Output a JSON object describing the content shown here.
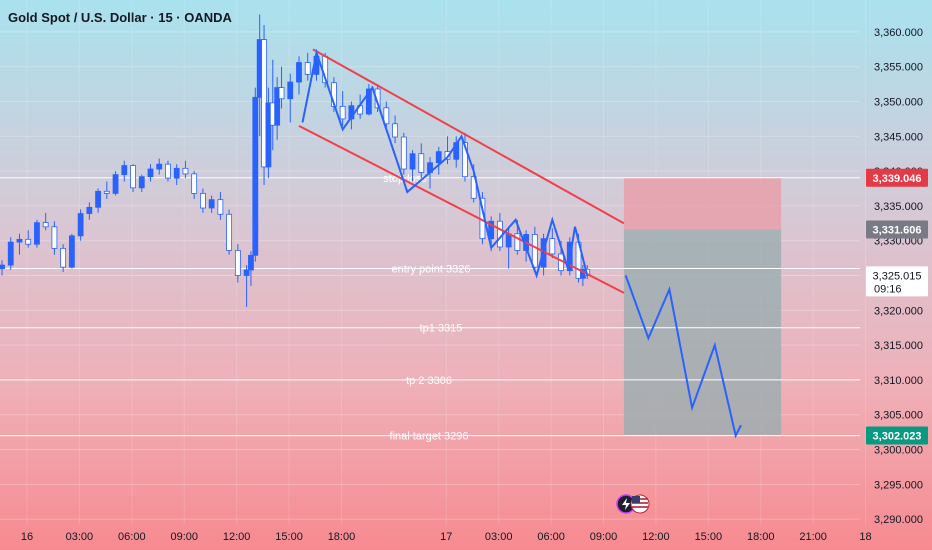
{
  "header": {
    "title": "Gold Spot / U.S. Dollar · 15 · OANDA"
  },
  "colors": {
    "channel": "#f0404a",
    "pattern": "#2962ff",
    "candle": "#2962ff",
    "level_line": "#ffffff",
    "stop_zone": "#e8a0aa",
    "target_zone": "#9aaeb0",
    "stop_badge": "#e63946",
    "entry_badge": "#787b86",
    "target_badge": "#089981",
    "current_badge": "#ffffff"
  },
  "chart_data": {
    "type": "candlestick",
    "symbol": "Gold Spot / U.S. Dollar",
    "interval": "15",
    "source": "OANDA",
    "ylim": [
      3287,
      3362
    ],
    "y_ticks": [
      "3,290.000",
      "3,295.000",
      "3,300.000",
      "3,305.000",
      "3,310.000",
      "3,315.000",
      "3,320.000",
      "3,325.000",
      "3,330.000",
      "3,335.000",
      "3,340.000",
      "3,345.000",
      "3,350.000",
      "3,355.000",
      "3,360.000"
    ],
    "y_tick_values": [
      3290,
      3295,
      3300,
      3305,
      3310,
      3315,
      3320,
      3325,
      3330,
      3335,
      3340,
      3345,
      3350,
      3355,
      3360
    ],
    "x_ticks": [
      "16",
      "03:00",
      "06:00",
      "09:00",
      "12:00",
      "15:00",
      "18:00",
      "17",
      "03:00",
      "06:00",
      "09:00",
      "12:00",
      "15:00",
      "18:00",
      "21:00",
      "18"
    ],
    "x_tick_hours": [
      0,
      3,
      6,
      9,
      12,
      15,
      18,
      24,
      27,
      30,
      33,
      36,
      39,
      42,
      45,
      48
    ],
    "levels": [
      {
        "label": "stop loss",
        "value": 3339.046
      },
      {
        "label": "entry point 3326",
        "value": 3326
      },
      {
        "label": "tp1    3315",
        "value": 3317.5
      },
      {
        "label": "tp 2     3306",
        "value": 3310
      },
      {
        "label": "final target 3296",
        "value": 3302
      }
    ],
    "price_badges": [
      {
        "text": "3,339.046",
        "value": 3339.046,
        "kind": "stop"
      },
      {
        "text": "3,331.606",
        "value": 3331.606,
        "kind": "entry"
      },
      {
        "text": "3,325.015",
        "value": 3325.015,
        "kind": "current",
        "sub": "09:16"
      },
      {
        "text": "3,302.023",
        "value": 3302.023,
        "kind": "target"
      }
    ],
    "channel": {
      "upper": [
        [
          17.8,
          3357.5
        ],
        [
          35.6,
          3332.5
        ]
      ],
      "lower": [
        [
          17.0,
          3346.5
        ],
        [
          35.6,
          3322.5
        ]
      ]
    },
    "pattern_path": [
      [
        17.2,
        3347
      ],
      [
        18.0,
        3357
      ],
      [
        19.5,
        3346
      ],
      [
        21.2,
        3352
      ],
      [
        23.2,
        3337
      ],
      [
        25.5,
        3342
      ],
      [
        26.3,
        3345
      ],
      [
        27.0,
        3340
      ],
      [
        28.0,
        3329
      ],
      [
        29.4,
        3333
      ],
      [
        30.6,
        3325
      ],
      [
        31.5,
        3333
      ],
      [
        32.4,
        3326
      ],
      [
        32.8,
        3332
      ],
      [
        33.5,
        3325
      ]
    ],
    "projection": [
      [
        35.7,
        3325
      ],
      [
        37.0,
        3316
      ],
      [
        38.2,
        3323
      ],
      [
        39.5,
        3306
      ],
      [
        40.8,
        3315
      ],
      [
        42.0,
        3302
      ],
      [
        42.3,
        3303.5
      ]
    ],
    "position": {
      "start_hour": 35.6,
      "end_hour": 44.6,
      "stop": 3339.046,
      "entry": 3331.606,
      "target": 3302.023
    },
    "candles": [
      [
        0.0,
        3326.0,
        3327.2,
        3325.0,
        3326.5
      ],
      [
        0.5,
        3326.5,
        3330.5,
        3325.8,
        3329.8
      ],
      [
        1.0,
        3329.8,
        3331.0,
        3328.0,
        3330.2
      ],
      [
        1.5,
        3330.2,
        3331.5,
        3329.0,
        3329.5
      ],
      [
        2.0,
        3329.5,
        3333.0,
        3329.0,
        3332.6
      ],
      [
        2.5,
        3332.6,
        3334.0,
        3331.5,
        3332.0
      ],
      [
        3.0,
        3332.0,
        3332.8,
        3328.0,
        3328.9
      ],
      [
        3.5,
        3328.9,
        3329.5,
        3325.5,
        3326.2
      ],
      [
        4.0,
        3326.2,
        3331.0,
        3326.0,
        3330.7
      ],
      [
        4.5,
        3330.7,
        3334.5,
        3330.0,
        3333.9
      ],
      [
        5.0,
        3333.9,
        3335.5,
        3333.0,
        3334.8
      ],
      [
        5.5,
        3334.8,
        3337.5,
        3334.0,
        3337.1
      ],
      [
        6.0,
        3337.1,
        3338.5,
        3336.0,
        3336.8
      ],
      [
        6.5,
        3336.8,
        3340.0,
        3336.5,
        3339.5
      ],
      [
        7.0,
        3339.5,
        3341.5,
        3338.5,
        3340.8
      ],
      [
        7.5,
        3340.8,
        3341.0,
        3337.0,
        3337.6
      ],
      [
        8.0,
        3337.6,
        3339.5,
        3337.0,
        3339.2
      ],
      [
        8.5,
        3339.2,
        3341.0,
        3338.5,
        3340.3
      ],
      [
        9.0,
        3340.3,
        3341.8,
        3339.5,
        3341.0
      ],
      [
        9.5,
        3341.0,
        3341.5,
        3338.5,
        3339.0
      ],
      [
        10.0,
        3339.0,
        3341.0,
        3338.0,
        3340.4
      ],
      [
        10.5,
        3340.4,
        3341.5,
        3339.0,
        3339.6
      ],
      [
        11.0,
        3339.6,
        3340.0,
        3336.0,
        3336.8
      ],
      [
        11.5,
        3336.8,
        3337.5,
        3334.0,
        3334.7
      ],
      [
        12.0,
        3334.7,
        3336.5,
        3334.0,
        3335.9
      ],
      [
        12.5,
        3335.9,
        3337.0,
        3333.0,
        3333.8
      ],
      [
        13.0,
        3333.8,
        3334.5,
        3328.0,
        3328.6
      ],
      [
        13.5,
        3328.6,
        3329.5,
        3324.0,
        3325.0
      ],
      [
        14.0,
        3325.0,
        3326.5,
        3320.5,
        3325.8
      ],
      [
        14.25,
        3325.8,
        3328.5,
        3323.5,
        3327.9
      ],
      [
        14.5,
        3327.9,
        3352.0,
        3327.0,
        3350.6
      ],
      [
        14.75,
        3350.6,
        3362.5,
        3345.0,
        3358.9
      ],
      [
        15.0,
        3358.9,
        3361.0,
        3338.0,
        3340.6
      ],
      [
        15.25,
        3340.6,
        3352.0,
        3339.0,
        3349.8
      ],
      [
        15.5,
        3349.8,
        3356.0,
        3343.0,
        3346.6
      ],
      [
        15.75,
        3346.6,
        3353.5,
        3344.5,
        3352.0
      ],
      [
        16.0,
        3352.0,
        3355.0,
        3349.0,
        3350.4
      ],
      [
        16.5,
        3350.4,
        3354.0,
        3347.0,
        3352.8
      ],
      [
        17.0,
        3352.8,
        3356.5,
        3351.0,
        3355.6
      ],
      [
        17.5,
        3355.6,
        3357.0,
        3353.0,
        3353.9
      ],
      [
        18.0,
        3353.9,
        3357.5,
        3353.0,
        3356.5
      ],
      [
        18.5,
        3356.5,
        3357.0,
        3352.0,
        3352.7
      ],
      [
        19.0,
        3352.7,
        3353.5,
        3348.5,
        3349.3
      ],
      [
        19.5,
        3349.3,
        3351.5,
        3346.5,
        3347.5
      ],
      [
        20.0,
        3347.5,
        3350.0,
        3346.0,
        3349.4
      ],
      [
        20.5,
        3349.4,
        3351.0,
        3347.5,
        3348.2
      ],
      [
        21.0,
        3348.2,
        3352.5,
        3348.0,
        3351.8
      ],
      [
        21.5,
        3351.8,
        3352.5,
        3348.5,
        3349.1
      ],
      [
        22.0,
        3349.1,
        3350.0,
        3346.0,
        3346.8
      ],
      [
        22.5,
        3346.8,
        3348.0,
        3344.0,
        3344.9
      ],
      [
        23.0,
        3344.9,
        3345.5,
        3339.5,
        3340.3
      ],
      [
        23.5,
        3340.3,
        3343.0,
        3338.5,
        3342.5
      ],
      [
        24.0,
        3342.5,
        3344.0,
        3339.0,
        3339.8
      ],
      [
        24.5,
        3339.8,
        3342.0,
        3337.5,
        3341.2
      ],
      [
        25.0,
        3341.2,
        3343.5,
        3339.5,
        3342.8
      ],
      [
        25.5,
        3342.8,
        3345.0,
        3341.0,
        3341.7
      ],
      [
        26.0,
        3341.7,
        3345.0,
        3340.5,
        3344.1
      ],
      [
        26.5,
        3344.1,
        3345.5,
        3338.5,
        3339.2
      ],
      [
        27.0,
        3339.2,
        3341.0,
        3335.5,
        3336.1
      ],
      [
        27.5,
        3336.1,
        3337.0,
        3329.5,
        3330.3
      ],
      [
        28.0,
        3330.3,
        3333.5,
        3328.5,
        3332.8
      ],
      [
        28.5,
        3332.8,
        3334.0,
        3328.5,
        3329.1
      ],
      [
        29.0,
        3329.1,
        3332.0,
        3326.0,
        3331.0
      ],
      [
        29.5,
        3331.0,
        3333.0,
        3328.0,
        3328.6
      ],
      [
        30.0,
        3328.6,
        3331.5,
        3327.0,
        3330.9
      ],
      [
        30.5,
        3330.9,
        3332.0,
        3325.5,
        3326.2
      ],
      [
        31.0,
        3326.2,
        3331.0,
        3325.0,
        3330.3
      ],
      [
        31.5,
        3330.3,
        3331.8,
        3327.5,
        3328.1
      ],
      [
        32.0,
        3328.1,
        3330.0,
        3325.0,
        3325.7
      ],
      [
        32.5,
        3325.7,
        3330.5,
        3325.0,
        3329.8
      ],
      [
        33.0,
        3329.8,
        3331.0,
        3324.0,
        3324.6
      ],
      [
        33.25,
        3324.6,
        3326.5,
        3323.5,
        3325.9
      ],
      [
        33.5,
        3325.9,
        3326.5,
        3324.5,
        3325.0
      ]
    ]
  },
  "footer": {
    "indicators": [
      "flash-icon",
      "us-flag-icon"
    ]
  }
}
